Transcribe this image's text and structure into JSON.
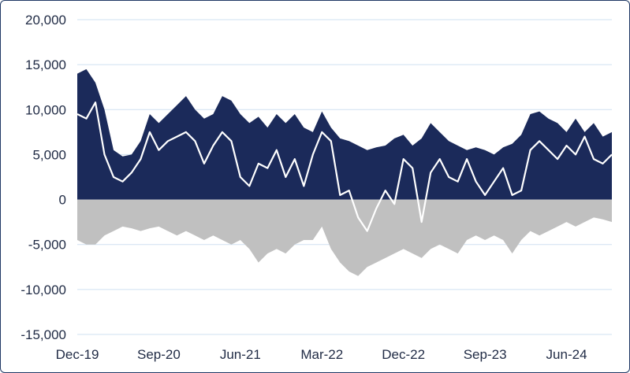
{
  "chart_data": {
    "type": "area",
    "x_tick_labels": [
      "Dec-19",
      "Sep-20",
      "Jun-21",
      "Mar-22",
      "Dec-22",
      "Sep-23",
      "Jun-24"
    ],
    "x_range": [
      "2019-12",
      "2024-11"
    ],
    "y_tick_labels": [
      "20,000",
      "15,000",
      "10,000",
      "5,000",
      "0",
      "-5,000",
      "-10,000",
      "-15,000"
    ],
    "ylim": [
      -15000,
      20000
    ],
    "y_ticks": [
      20000,
      15000,
      10000,
      5000,
      0,
      -5000,
      -10000,
      -15000
    ],
    "grid": "horizontal",
    "title": "",
    "xlabel": "",
    "ylabel": "",
    "colors": {
      "positive_area": "#1b2a5a",
      "negative_area": "#c0c0c0",
      "line": "#ffffff",
      "grid": "#cfe0f1"
    },
    "series": [
      {
        "type": "area",
        "color": "#1b2a5a",
        "points": [
          [
            "2019-12",
            14000
          ],
          [
            "2020-01",
            14500
          ],
          [
            "2020-02",
            13000
          ],
          [
            "2020-03",
            10000
          ],
          [
            "2020-04",
            5500
          ],
          [
            "2020-05",
            4800
          ],
          [
            "2020-06",
            5000
          ],
          [
            "2020-07",
            6500
          ],
          [
            "2020-08",
            9500
          ],
          [
            "2020-09",
            8500
          ],
          [
            "2020-10",
            9500
          ],
          [
            "2020-11",
            10500
          ],
          [
            "2020-12",
            11500
          ],
          [
            "2021-01",
            10000
          ],
          [
            "2021-02",
            9000
          ],
          [
            "2021-03",
            9500
          ],
          [
            "2021-04",
            11500
          ],
          [
            "2021-05",
            11000
          ],
          [
            "2021-06",
            9500
          ],
          [
            "2021-07",
            8500
          ],
          [
            "2021-08",
            9200
          ],
          [
            "2021-09",
            8000
          ],
          [
            "2021-10",
            9500
          ],
          [
            "2021-11",
            8500
          ],
          [
            "2021-12",
            9500
          ],
          [
            "2022-01",
            8000
          ],
          [
            "2022-02",
            7500
          ],
          [
            "2022-03",
            9800
          ],
          [
            "2022-04",
            8000
          ],
          [
            "2022-05",
            6800
          ],
          [
            "2022-06",
            6500
          ],
          [
            "2022-07",
            6000
          ],
          [
            "2022-08",
            5500
          ],
          [
            "2022-09",
            5800
          ],
          [
            "2022-10",
            6000
          ],
          [
            "2022-11",
            6800
          ],
          [
            "2022-12",
            7200
          ],
          [
            "2023-01",
            6000
          ],
          [
            "2023-02",
            6800
          ],
          [
            "2023-03",
            8500
          ],
          [
            "2023-04",
            7500
          ],
          [
            "2023-05",
            6500
          ],
          [
            "2023-06",
            6000
          ],
          [
            "2023-07",
            5500
          ],
          [
            "2023-08",
            5800
          ],
          [
            "2023-09",
            5500
          ],
          [
            "2023-10",
            5000
          ],
          [
            "2023-11",
            5800
          ],
          [
            "2023-12",
            6200
          ],
          [
            "2024-01",
            7200
          ],
          [
            "2024-02",
            9500
          ],
          [
            "2024-03",
            9800
          ],
          [
            "2024-04",
            9000
          ],
          [
            "2024-05",
            8500
          ],
          [
            "2024-06",
            7500
          ],
          [
            "2024-07",
            9000
          ],
          [
            "2024-08",
            7500
          ],
          [
            "2024-09",
            8500
          ],
          [
            "2024-10",
            7000
          ],
          [
            "2024-11",
            7500
          ]
        ]
      },
      {
        "type": "area",
        "color": "#c0c0c0",
        "points": [
          [
            "2019-12",
            -4500
          ],
          [
            "2020-01",
            -5000
          ],
          [
            "2020-02",
            -5000
          ],
          [
            "2020-03",
            -4000
          ],
          [
            "2020-04",
            -3500
          ],
          [
            "2020-05",
            -3000
          ],
          [
            "2020-06",
            -3200
          ],
          [
            "2020-07",
            -3500
          ],
          [
            "2020-08",
            -3200
          ],
          [
            "2020-09",
            -3000
          ],
          [
            "2020-10",
            -3500
          ],
          [
            "2020-11",
            -4000
          ],
          [
            "2020-12",
            -3500
          ],
          [
            "2021-01",
            -4000
          ],
          [
            "2021-02",
            -4500
          ],
          [
            "2021-03",
            -4000
          ],
          [
            "2021-04",
            -4500
          ],
          [
            "2021-05",
            -5000
          ],
          [
            "2021-06",
            -4500
          ],
          [
            "2021-07",
            -5500
          ],
          [
            "2021-08",
            -7000
          ],
          [
            "2021-09",
            -6000
          ],
          [
            "2021-10",
            -5500
          ],
          [
            "2021-11",
            -6000
          ],
          [
            "2021-12",
            -5000
          ],
          [
            "2022-01",
            -4500
          ],
          [
            "2022-02",
            -4500
          ],
          [
            "2022-03",
            -3000
          ],
          [
            "2022-04",
            -5500
          ],
          [
            "2022-05",
            -7000
          ],
          [
            "2022-06",
            -8000
          ],
          [
            "2022-07",
            -8500
          ],
          [
            "2022-08",
            -7500
          ],
          [
            "2022-09",
            -7000
          ],
          [
            "2022-10",
            -6500
          ],
          [
            "2022-11",
            -6000
          ],
          [
            "2022-12",
            -5500
          ],
          [
            "2023-01",
            -6000
          ],
          [
            "2023-02",
            -6500
          ],
          [
            "2023-03",
            -5500
          ],
          [
            "2023-04",
            -5000
          ],
          [
            "2023-05",
            -5500
          ],
          [
            "2023-06",
            -6000
          ],
          [
            "2023-07",
            -4500
          ],
          [
            "2023-08",
            -4000
          ],
          [
            "2023-09",
            -4500
          ],
          [
            "2023-10",
            -4000
          ],
          [
            "2023-11",
            -4500
          ],
          [
            "2023-12",
            -6000
          ],
          [
            "2024-01",
            -4500
          ],
          [
            "2024-02",
            -3500
          ],
          [
            "2024-03",
            -4000
          ],
          [
            "2024-04",
            -3500
          ],
          [
            "2024-05",
            -3000
          ],
          [
            "2024-06",
            -2500
          ],
          [
            "2024-07",
            -3000
          ],
          [
            "2024-08",
            -2500
          ],
          [
            "2024-09",
            -2000
          ],
          [
            "2024-10",
            -2200
          ],
          [
            "2024-11",
            -2500
          ]
        ]
      },
      {
        "type": "line",
        "color": "#ffffff",
        "points": [
          [
            "2019-12",
            9500
          ],
          [
            "2020-01",
            9000
          ],
          [
            "2020-02",
            10800
          ],
          [
            "2020-03",
            5000
          ],
          [
            "2020-04",
            2500
          ],
          [
            "2020-05",
            2000
          ],
          [
            "2020-06",
            3000
          ],
          [
            "2020-07",
            4500
          ],
          [
            "2020-08",
            7500
          ],
          [
            "2020-09",
            5500
          ],
          [
            "2020-10",
            6500
          ],
          [
            "2020-11",
            7000
          ],
          [
            "2020-12",
            7500
          ],
          [
            "2021-01",
            6500
          ],
          [
            "2021-02",
            4000
          ],
          [
            "2021-03",
            6000
          ],
          [
            "2021-04",
            7500
          ],
          [
            "2021-05",
            6500
          ],
          [
            "2021-06",
            2500
          ],
          [
            "2021-07",
            1500
          ],
          [
            "2021-08",
            4000
          ],
          [
            "2021-09",
            3500
          ],
          [
            "2021-10",
            5500
          ],
          [
            "2021-11",
            2500
          ],
          [
            "2021-12",
            4500
          ],
          [
            "2022-01",
            1500
          ],
          [
            "2022-02",
            5000
          ],
          [
            "2022-03",
            7500
          ],
          [
            "2022-04",
            6500
          ],
          [
            "2022-05",
            500
          ],
          [
            "2022-06",
            1000
          ],
          [
            "2022-07",
            -2000
          ],
          [
            "2022-08",
            -3500
          ],
          [
            "2022-09",
            -1000
          ],
          [
            "2022-10",
            1000
          ],
          [
            "2022-11",
            -500
          ],
          [
            "2022-12",
            4500
          ],
          [
            "2023-01",
            3500
          ],
          [
            "2023-02",
            -2500
          ],
          [
            "2023-03",
            3000
          ],
          [
            "2023-04",
            4500
          ],
          [
            "2023-05",
            2500
          ],
          [
            "2023-06",
            2000
          ],
          [
            "2023-07",
            4500
          ],
          [
            "2023-08",
            2000
          ],
          [
            "2023-09",
            500
          ],
          [
            "2023-10",
            2000
          ],
          [
            "2023-11",
            3500
          ],
          [
            "2023-12",
            500
          ],
          [
            "2024-01",
            1000
          ],
          [
            "2024-02",
            5500
          ],
          [
            "2024-03",
            6500
          ],
          [
            "2024-04",
            5500
          ],
          [
            "2024-05",
            4500
          ],
          [
            "2024-06",
            6000
          ],
          [
            "2024-07",
            5000
          ],
          [
            "2024-08",
            7000
          ],
          [
            "2024-09",
            4500
          ],
          [
            "2024-10",
            4000
          ],
          [
            "2024-11",
            5000
          ]
        ]
      }
    ]
  }
}
